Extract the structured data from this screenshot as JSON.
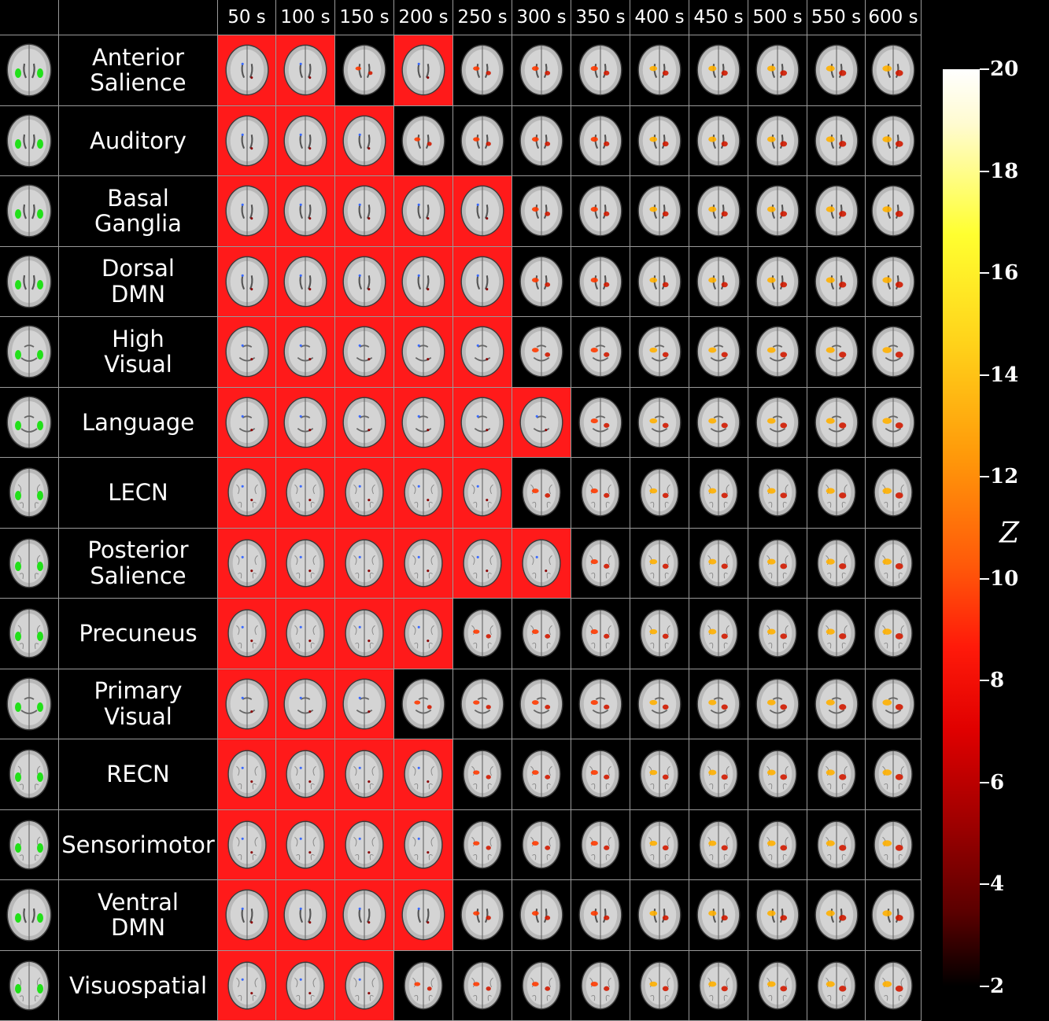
{
  "columns": [
    "50 s",
    "100 s",
    "150 s",
    "200 s",
    "250 s",
    "300 s",
    "350 s",
    "400 s",
    "450 s",
    "500 s",
    "550 s",
    "600 s"
  ],
  "networks": [
    {
      "line1": "Anterior",
      "line2": "Salience",
      "red": [
        1,
        1,
        0,
        1,
        0,
        0,
        0,
        0,
        0,
        0,
        0,
        0
      ],
      "slice": "mid"
    },
    {
      "line1": "Auditory",
      "line2": "",
      "red": [
        1,
        1,
        1,
        0,
        0,
        0,
        0,
        0,
        0,
        0,
        0,
        0
      ],
      "slice": "mid"
    },
    {
      "line1": "Basal",
      "line2": "Ganglia",
      "red": [
        1,
        1,
        1,
        1,
        1,
        0,
        0,
        0,
        0,
        0,
        0,
        0
      ],
      "slice": "mid"
    },
    {
      "line1": "Dorsal",
      "line2": "DMN",
      "red": [
        1,
        1,
        1,
        1,
        1,
        0,
        0,
        0,
        0,
        0,
        0,
        0
      ],
      "slice": "mid"
    },
    {
      "line1": "High",
      "line2": "Visual",
      "red": [
        1,
        1,
        1,
        1,
        1,
        0,
        0,
        0,
        0,
        0,
        0,
        0
      ],
      "slice": "low"
    },
    {
      "line1": "Language",
      "line2": "",
      "red": [
        1,
        1,
        1,
        1,
        1,
        1,
        0,
        0,
        0,
        0,
        0,
        0
      ],
      "slice": "low"
    },
    {
      "line1": "LECN",
      "line2": "",
      "red": [
        1,
        1,
        1,
        1,
        1,
        0,
        0,
        0,
        0,
        0,
        0,
        0
      ],
      "slice": "top"
    },
    {
      "line1": "Posterior",
      "line2": "Salience",
      "red": [
        1,
        1,
        1,
        1,
        1,
        1,
        0,
        0,
        0,
        0,
        0,
        0
      ],
      "slice": "top"
    },
    {
      "line1": "Precuneus",
      "line2": "",
      "red": [
        1,
        1,
        1,
        1,
        0,
        0,
        0,
        0,
        0,
        0,
        0,
        0
      ],
      "slice": "top"
    },
    {
      "line1": "Primary",
      "line2": "Visual",
      "red": [
        1,
        1,
        1,
        0,
        0,
        0,
        0,
        0,
        0,
        0,
        0,
        0
      ],
      "slice": "low"
    },
    {
      "line1": "RECN",
      "line2": "",
      "red": [
        1,
        1,
        1,
        1,
        0,
        0,
        0,
        0,
        0,
        0,
        0,
        0
      ],
      "slice": "top"
    },
    {
      "line1": "Sensorimotor",
      "line2": "",
      "red": [
        1,
        1,
        1,
        1,
        0,
        0,
        0,
        0,
        0,
        0,
        0,
        0
      ],
      "slice": "top"
    },
    {
      "line1": "Ventral",
      "line2": "DMN",
      "red": [
        1,
        1,
        1,
        1,
        0,
        0,
        0,
        0,
        0,
        0,
        0,
        0
      ],
      "slice": "mid"
    },
    {
      "line1": "Visuospatial",
      "line2": "",
      "red": [
        1,
        1,
        1,
        0,
        0,
        0,
        0,
        0,
        0,
        0,
        0,
        0
      ],
      "slice": "top"
    }
  ],
  "colorbar": {
    "label": "Z",
    "ticks": [
      "20",
      "18",
      "16",
      "14",
      "12",
      "10",
      "8",
      "6",
      "4",
      "2"
    ],
    "tick_values": [
      20,
      18,
      16,
      14,
      12,
      10,
      8,
      6,
      4,
      2
    ],
    "min": 2,
    "max": 20
  },
  "colors": {
    "highlight": "#ff1a1a",
    "network_mask": "#22e01a",
    "grid_line": "#9a9a9a",
    "background": "#000000"
  }
}
